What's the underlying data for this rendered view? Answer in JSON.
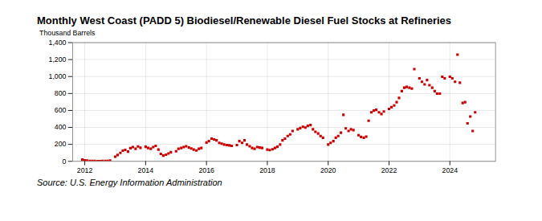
{
  "chart_data": {
    "type": "scatter",
    "title": "Monthly West Coast (PADD 5) Biodiesel/Renewable Diesel Fuel Stocks at Refineries",
    "ylabel": "Thousand Barrels",
    "source": "Source: U.S. Energy Information Administration",
    "color": "#CC0000",
    "marker": "square",
    "grid": true,
    "xlim": [
      2011.6,
      2025.5
    ],
    "xticks": [
      2012,
      2014,
      2016,
      2018,
      2020,
      2022,
      2024
    ],
    "ylim": [
      0,
      1400
    ],
    "yticks": [
      0,
      200,
      400,
      600,
      800,
      {
        "value": 1000,
        "label": "1,000"
      },
      {
        "value": 1200,
        "label": "1,200"
      },
      {
        "value": 1400,
        "label": "1,400"
      }
    ],
    "x": [
      2011.92,
      2012.0,
      2012.08,
      2012.17,
      2012.25,
      2012.33,
      2012.42,
      2012.5,
      2012.58,
      2012.67,
      2012.75,
      2012.83,
      2013.0,
      2013.08,
      2013.17,
      2013.25,
      2013.33,
      2013.42,
      2013.5,
      2013.58,
      2013.67,
      2013.75,
      2013.83,
      2014.0,
      2014.08,
      2014.17,
      2014.25,
      2014.33,
      2014.42,
      2014.5,
      2014.58,
      2014.67,
      2014.75,
      2014.83,
      2015.0,
      2015.08,
      2015.17,
      2015.25,
      2015.33,
      2015.42,
      2015.5,
      2015.58,
      2015.67,
      2015.75,
      2015.83,
      2016.0,
      2016.08,
      2016.17,
      2016.25,
      2016.33,
      2016.42,
      2016.5,
      2016.58,
      2016.67,
      2016.75,
      2016.83,
      2017.0,
      2017.08,
      2017.17,
      2017.25,
      2017.33,
      2017.42,
      2017.5,
      2017.58,
      2017.67,
      2017.75,
      2017.83,
      2018.0,
      2018.08,
      2018.17,
      2018.25,
      2018.33,
      2018.42,
      2018.5,
      2018.58,
      2018.67,
      2018.75,
      2018.83,
      2019.0,
      2019.08,
      2019.17,
      2019.25,
      2019.33,
      2019.42,
      2019.5,
      2019.58,
      2019.67,
      2019.75,
      2019.83,
      2020.0,
      2020.08,
      2020.17,
      2020.25,
      2020.33,
      2020.42,
      2020.5,
      2020.58,
      2020.67,
      2020.75,
      2020.83,
      2021.0,
      2021.08,
      2021.17,
      2021.25,
      2021.33,
      2021.42,
      2021.5,
      2021.58,
      2021.67,
      2021.75,
      2021.83,
      2022.0,
      2022.08,
      2022.17,
      2022.25,
      2022.33,
      2022.42,
      2022.5,
      2022.58,
      2022.67,
      2022.75,
      2022.83,
      2023.0,
      2023.08,
      2023.17,
      2023.25,
      2023.33,
      2023.42,
      2023.5,
      2023.58,
      2023.67,
      2023.75,
      2023.83,
      2024.0,
      2024.08,
      2024.17,
      2024.25,
      2024.33,
      2024.42,
      2024.5,
      2024.58,
      2024.67,
      2024.75,
      2024.83
    ],
    "values": [
      20,
      12,
      8,
      4,
      5,
      3,
      2,
      1,
      3,
      5,
      4,
      8,
      55,
      75,
      100,
      125,
      135,
      115,
      155,
      168,
      148,
      175,
      160,
      172,
      158,
      148,
      168,
      182,
      138,
      88,
      68,
      78,
      92,
      108,
      118,
      148,
      158,
      168,
      178,
      162,
      152,
      138,
      128,
      148,
      158,
      222,
      238,
      268,
      258,
      248,
      218,
      208,
      198,
      192,
      188,
      182,
      192,
      238,
      218,
      248,
      198,
      178,
      158,
      148,
      168,
      162,
      158,
      138,
      132,
      142,
      158,
      172,
      198,
      248,
      268,
      298,
      318,
      358,
      378,
      392,
      408,
      398,
      418,
      428,
      378,
      348,
      328,
      298,
      278,
      198,
      218,
      238,
      278,
      298,
      338,
      548,
      388,
      358,
      378,
      368,
      308,
      288,
      278,
      292,
      478,
      578,
      598,
      608,
      578,
      558,
      588,
      618,
      638,
      658,
      698,
      748,
      828,
      868,
      878,
      868,
      858,
      1088,
      978,
      938,
      908,
      958,
      898,
      868,
      828,
      798,
      798,
      998,
      978,
      998,
      978,
      938,
      1258,
      928,
      688,
      698,
      448,
      528,
      358,
      578
    ]
  }
}
